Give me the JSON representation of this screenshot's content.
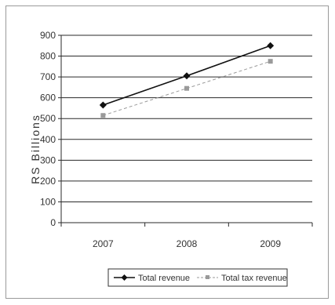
{
  "chart_data": {
    "type": "line",
    "categories": [
      "2007",
      "2008",
      "2009"
    ],
    "series": [
      {
        "name": "Total revenue",
        "values": [
          565,
          705,
          850
        ],
        "color": "#111111",
        "marker": "diamond",
        "dash": "solid"
      },
      {
        "name": "Total tax revenue",
        "values": [
          515,
          645,
          775
        ],
        "color": "#9a9a9a",
        "marker": "square",
        "dash": "dashed"
      }
    ],
    "title": "",
    "xlabel": "",
    "ylabel": "RS Billions",
    "ylim": [
      0,
      900
    ],
    "yticks": [
      0,
      100,
      200,
      300,
      400,
      500,
      600,
      700,
      800,
      900
    ],
    "grid": true,
    "legend_position": "bottom"
  }
}
